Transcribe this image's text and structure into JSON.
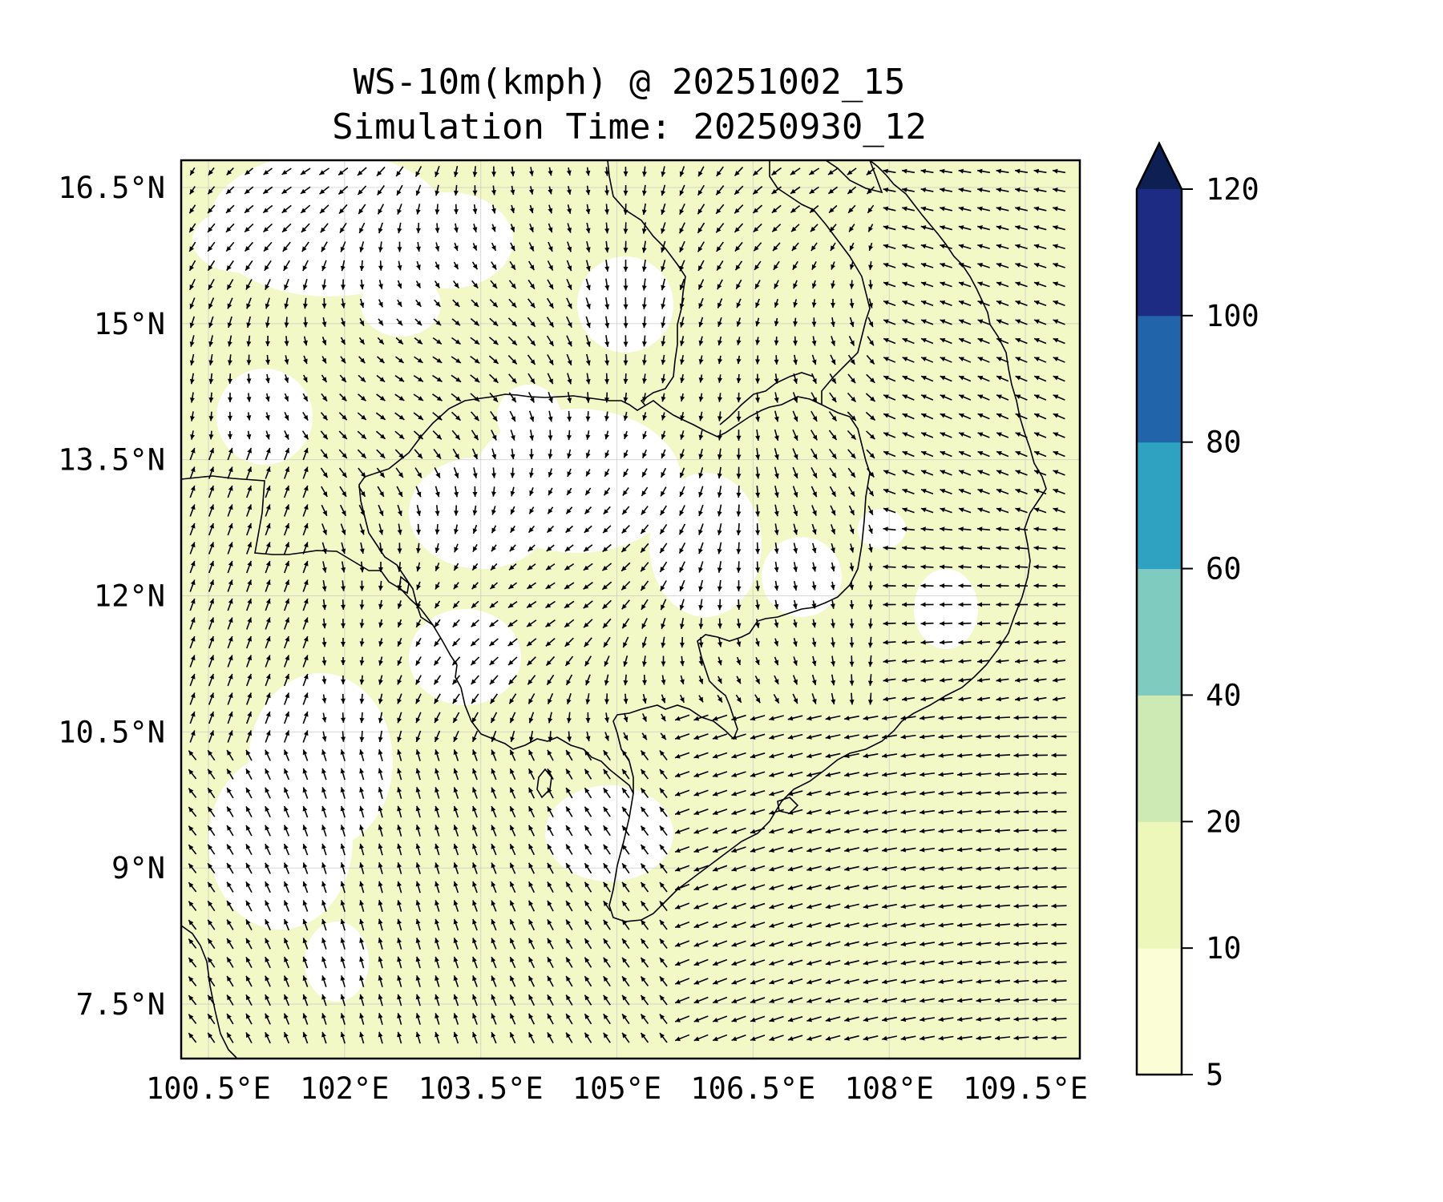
{
  "title": {
    "line1": "WS-10m(kmph) @ 20251002_15",
    "line2": "Simulation Time: 20250930_12"
  },
  "variable": "WS-10m(kmph)",
  "map": {
    "lon_range": [
      100.2,
      110.1
    ],
    "lat_range": [
      6.9,
      16.8
    ],
    "x_ticks": [
      {
        "value": 100.5,
        "label": "100.5°E"
      },
      {
        "value": 102.0,
        "label": "102°E"
      },
      {
        "value": 103.5,
        "label": "103.5°E"
      },
      {
        "value": 105.0,
        "label": "105°E"
      },
      {
        "value": 106.5,
        "label": "106.5°E"
      },
      {
        "value": 108.0,
        "label": "108°E"
      },
      {
        "value": 109.5,
        "label": "109.5°E"
      }
    ],
    "y_ticks": [
      {
        "value": 16.5,
        "label": "16.5°N"
      },
      {
        "value": 15.0,
        "label": "15°N"
      },
      {
        "value": 13.5,
        "label": "13.5°N"
      },
      {
        "value": 12.0,
        "label": "12°N"
      },
      {
        "value": 10.5,
        "label": "10.5°N"
      },
      {
        "value": 9.0,
        "label": "9°N"
      },
      {
        "value": 7.5,
        "label": "7.5°N"
      }
    ],
    "grid": true,
    "fill_color": "#f2f8c6",
    "light_color": "#ffffff"
  },
  "colorbar": {
    "levels": [
      5,
      10,
      20,
      40,
      60,
      80,
      100,
      120
    ],
    "colors": [
      "#fbfdd6",
      "#edf7b9",
      "#cde9b4",
      "#7fcbbf",
      "#2fa2c2",
      "#2264a9",
      "#1d2b82"
    ],
    "extend_color": "#0d1f53",
    "extend": "max",
    "labels": [
      "5",
      "10",
      "20",
      "40",
      "60",
      "80",
      "100",
      "120"
    ]
  }
}
